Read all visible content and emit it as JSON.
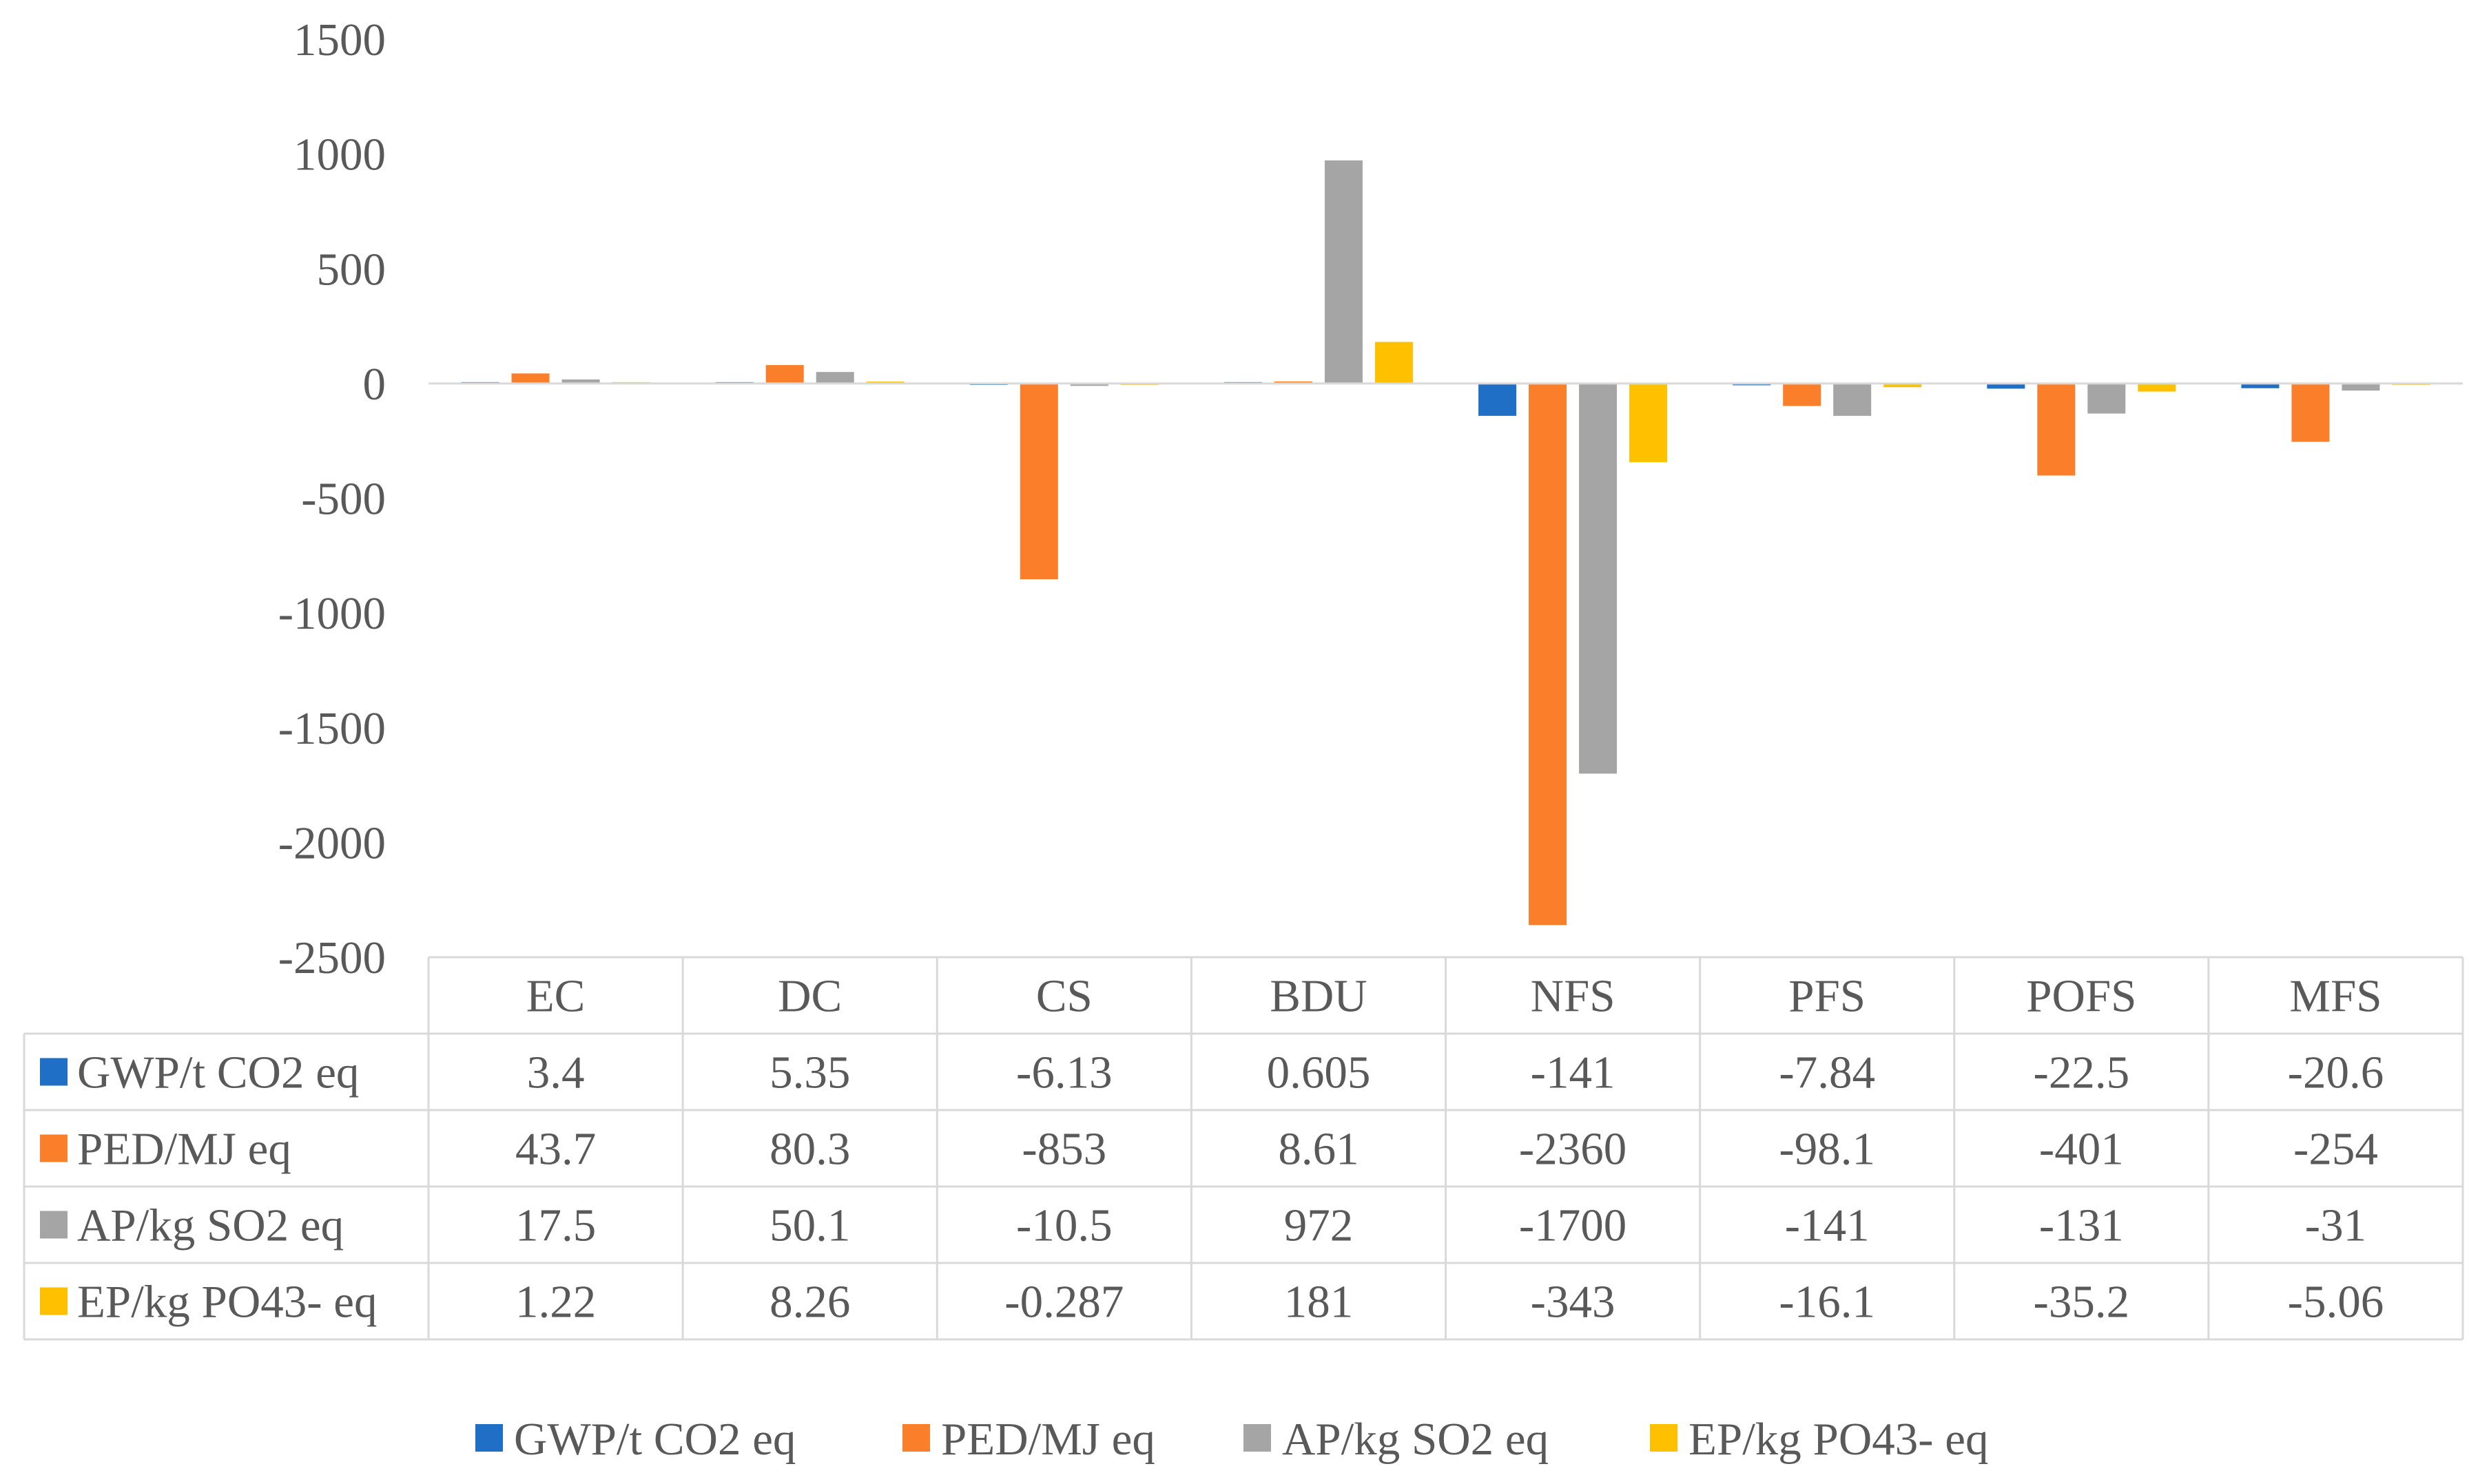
{
  "chart_data": {
    "type": "bar",
    "title": "",
    "xlabel": "",
    "ylabel": "",
    "ylim": [
      -2500,
      1500
    ],
    "yticks": [
      "1500",
      "1000",
      "500",
      "0",
      "-500",
      "-1000",
      "-1500",
      "-2000",
      "-2500"
    ],
    "ytick_values": [
      1500,
      1000,
      500,
      0,
      -500,
      -1000,
      -1500,
      -2000,
      -2500
    ],
    "categories": [
      "EC",
      "DC",
      "CS",
      "BDU",
      "NFS",
      "PFS",
      "POFS",
      "MFS"
    ],
    "series": [
      {
        "name": "GWP/t CO2 eq",
        "color": "#1F6FC6",
        "values": [
          3.4,
          5.35,
          -6.13,
          0.605,
          -141,
          -7.84,
          -22.5,
          -20.6
        ],
        "labels": [
          "3.4",
          "5.35",
          "-6.13",
          "0.605",
          "-141",
          "-7.84",
          "-22.5",
          "-20.6"
        ]
      },
      {
        "name": "PED/MJ eq",
        "color": "#FB7F2A",
        "values": [
          43.7,
          80.3,
          -853,
          8.61,
          -2360,
          -98.1,
          -401,
          -254
        ],
        "labels": [
          "43.7",
          "80.3",
          "-853",
          "8.61",
          "-2360",
          "-98.1",
          "-401",
          "-254"
        ]
      },
      {
        "name": "AP/kg SO2 eq",
        "color": "#A5A5A5",
        "values": [
          17.5,
          50.1,
          -10.5,
          972,
          -1700,
          -141,
          -131,
          -31
        ],
        "labels": [
          "17.5",
          "50.1",
          "-10.5",
          "972",
          "-1700",
          "-141",
          "-131",
          "-31"
        ]
      },
      {
        "name": "EP/kg PO43- eq",
        "color": "#FFC000",
        "values": [
          1.22,
          8.26,
          -0.287,
          181,
          -343,
          -16.1,
          -35.2,
          -5.06
        ],
        "labels": [
          "1.22",
          "8.26",
          "-0.287",
          "181",
          "-343",
          "-16.1",
          "-35.2",
          "-5.06"
        ]
      }
    ],
    "grid": false,
    "legend_position": "bottom",
    "data_table": true
  }
}
